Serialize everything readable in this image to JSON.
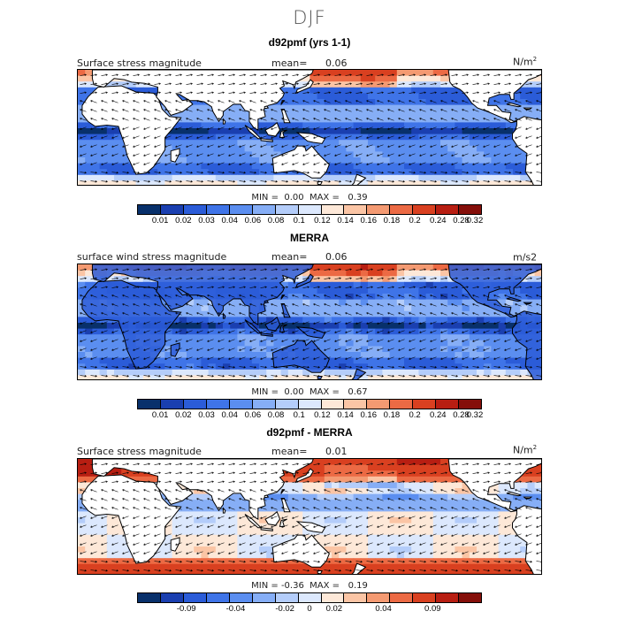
{
  "main_title": "DJF",
  "colors": {
    "scale_colors": [
      "#08306b",
      "#1a3fb0",
      "#2b5cd8",
      "#3f74e8",
      "#5b8ef0",
      "#86aef6",
      "#b4cdfa",
      "#dce8fd",
      "#fde8d8",
      "#fbc5a5",
      "#f49a72",
      "#ec6a44",
      "#d94020",
      "#b81e12",
      "#850f0a"
    ],
    "land": "#ffffff",
    "coast": "#000000"
  },
  "panels": [
    {
      "title": "d92pmf (yrs 1-1)",
      "left_label": "Surface stress magnitude",
      "mean_label": "mean=",
      "mean_value": "0.06",
      "unit": "N/m",
      "unit_sup": "2",
      "min_label": "MIN =",
      "min_value": "0.00",
      "max_label": "MAX =",
      "max_value": "0.39",
      "colorbar_ticks": [
        "0.01",
        "0.02",
        "0.03",
        "0.04",
        "0.06",
        "0.08",
        "0.1",
        "0.12",
        "0.14",
        "0.16",
        "0.18",
        "0.2",
        "0.24",
        "0.28",
        "0.32"
      ]
    },
    {
      "title": "MERRA",
      "left_label": "surface wind stress magnitude",
      "mean_label": "mean=",
      "mean_value": "0.06",
      "unit": "m/s2",
      "unit_sup": "",
      "min_label": "MIN =",
      "min_value": "0.00",
      "max_label": "MAX =",
      "max_value": "0.67",
      "colorbar_ticks": [
        "0.01",
        "0.02",
        "0.03",
        "0.04",
        "0.06",
        "0.08",
        "0.1",
        "0.12",
        "0.14",
        "0.16",
        "0.18",
        "0.2",
        "0.24",
        "0.28",
        "0.32"
      ]
    },
    {
      "title": "d92pmf - MERRA",
      "left_label": "Surface stress magnitude",
      "mean_label": "mean=",
      "mean_value": "0.01",
      "unit": "N/m",
      "unit_sup": "2",
      "min_label": "MIN =",
      "min_value": "-0.36",
      "max_label": "MAX =",
      "max_value": "0.19",
      "colorbar_ticks": [
        "-0.09",
        "-0.04",
        "-0.02",
        "0",
        "0.02",
        "0.04",
        "0.09"
      ]
    }
  ],
  "chart_data": [
    {
      "type": "heatmap",
      "title": "d92pmf (yrs 1-1)",
      "variable": "Surface stress magnitude",
      "units": "N/m2",
      "mean": 0.06,
      "min": 0.0,
      "max": 0.39,
      "color_levels": [
        0.01,
        0.02,
        0.03,
        0.04,
        0.06,
        0.08,
        0.1,
        0.12,
        0.14,
        0.16,
        0.18,
        0.2,
        0.24,
        0.28,
        0.32
      ],
      "overlay": "wind stress vectors"
    },
    {
      "type": "heatmap",
      "title": "MERRA",
      "variable": "surface wind stress magnitude",
      "units": "m/s2",
      "mean": 0.06,
      "min": 0.0,
      "max": 0.67,
      "color_levels": [
        0.01,
        0.02,
        0.03,
        0.04,
        0.06,
        0.08,
        0.1,
        0.12,
        0.14,
        0.16,
        0.18,
        0.2,
        0.24,
        0.28,
        0.32
      ],
      "overlay": "wind stress vectors"
    },
    {
      "type": "heatmap",
      "title": "d92pmf - MERRA",
      "variable": "Surface stress magnitude",
      "units": "N/m2",
      "mean": 0.01,
      "min": -0.36,
      "max": 0.19,
      "color_levels": [
        -0.09,
        -0.04,
        -0.02,
        0,
        0.02,
        0.04,
        0.09
      ],
      "overlay": "wind stress vectors"
    }
  ]
}
